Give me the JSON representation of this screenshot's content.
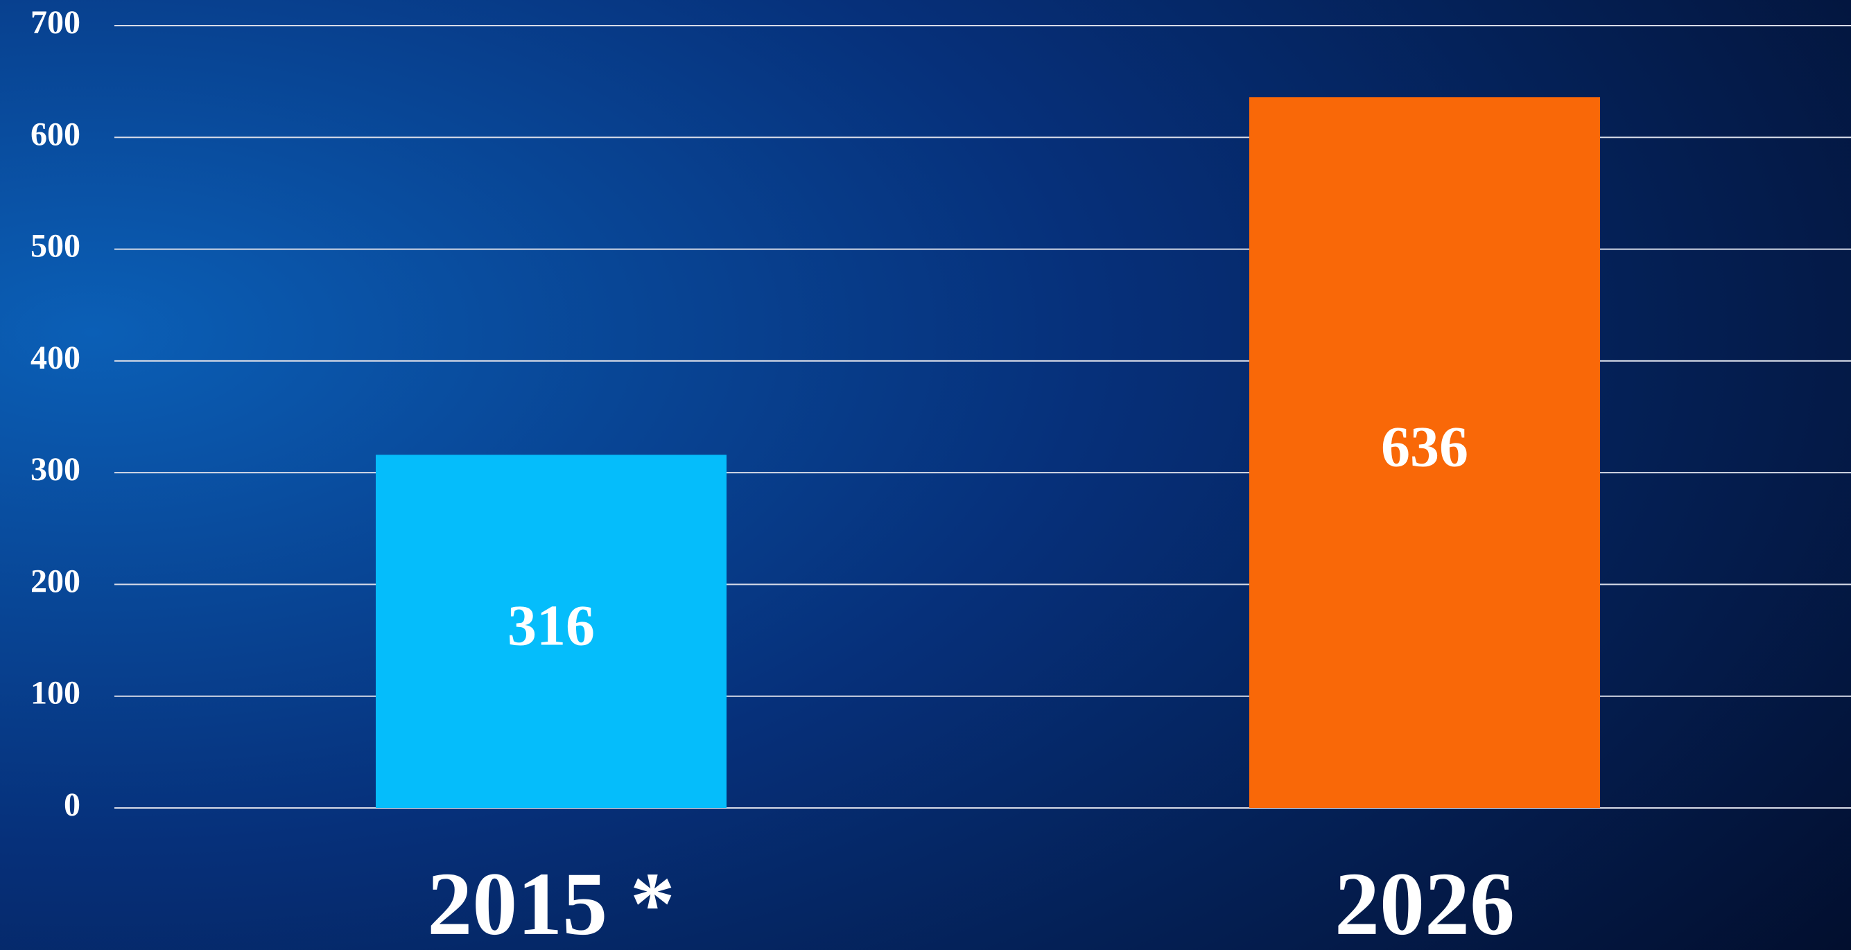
{
  "chart_data": {
    "type": "bar",
    "categories": [
      "2015 *",
      "2026"
    ],
    "values": [
      316,
      636
    ],
    "colors": [
      "#05bdfb",
      "#f96808"
    ],
    "ylim": [
      0,
      700
    ],
    "yticks": [
      0,
      100,
      200,
      300,
      400,
      500,
      600,
      700
    ],
    "grid": true,
    "data_labels": true
  }
}
